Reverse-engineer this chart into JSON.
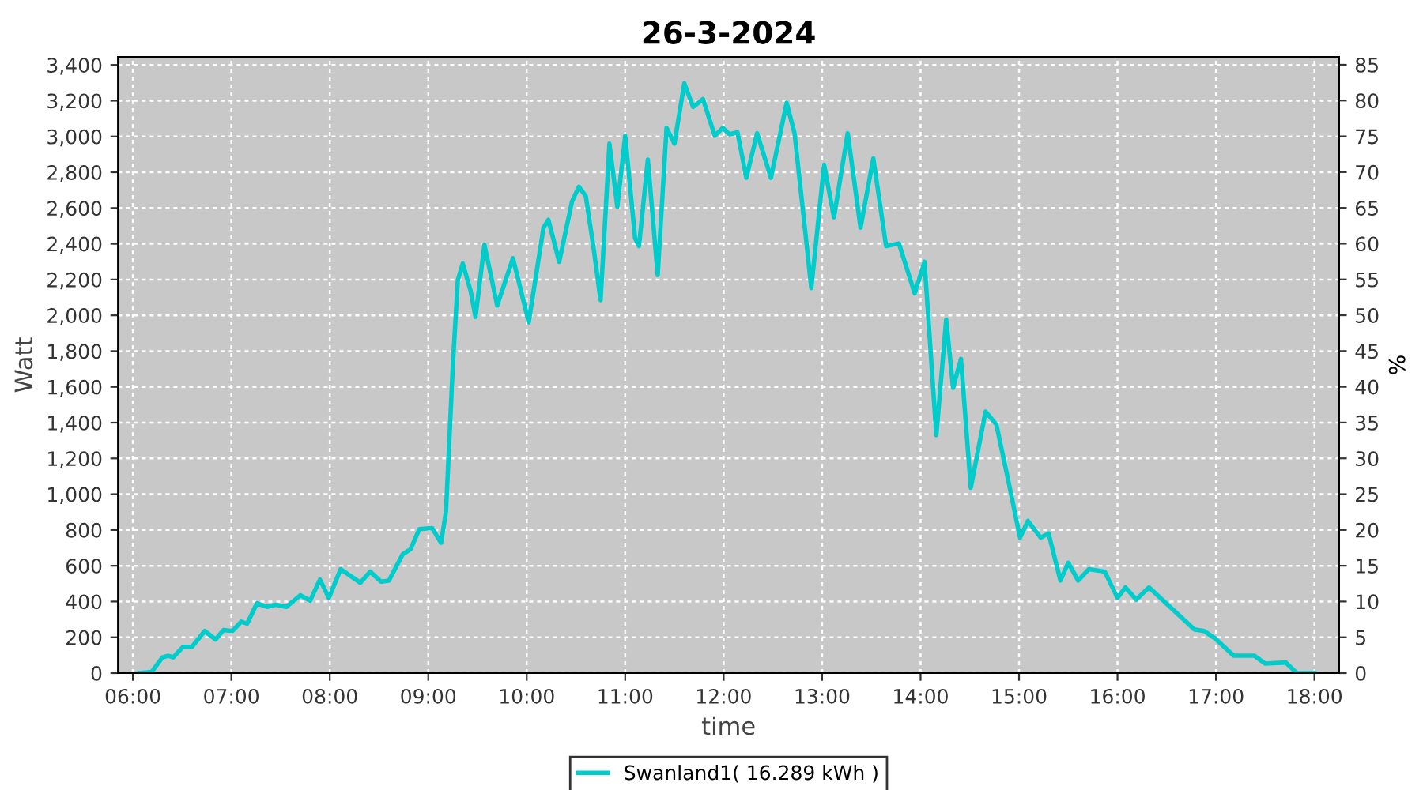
{
  "chart_data": {
    "type": "line",
    "title": "26-3-2024",
    "xlabel": "time",
    "ylabel": "Watt",
    "y2label": "%",
    "xlim": [
      5.85,
      18.25
    ],
    "xticks": [
      {
        "value": 6,
        "label": "06:00"
      },
      {
        "value": 7,
        "label": "07:00"
      },
      {
        "value": 8,
        "label": "08:00"
      },
      {
        "value": 9,
        "label": "09:00"
      },
      {
        "value": 10,
        "label": "10:00"
      },
      {
        "value": 11,
        "label": "11:00"
      },
      {
        "value": 12,
        "label": "12:00"
      },
      {
        "value": 13,
        "label": "13:00"
      },
      {
        "value": 14,
        "label": "14:00"
      },
      {
        "value": 15,
        "label": "15:00"
      },
      {
        "value": 16,
        "label": "16:00"
      },
      {
        "value": 17,
        "label": "17:00"
      },
      {
        "value": 18,
        "label": "18:00"
      }
    ],
    "ylim": [
      0,
      3445
    ],
    "yticks": [
      0,
      200,
      400,
      600,
      800,
      {
        "value": 1000,
        "label": "1,000"
      },
      {
        "value": 1200,
        "label": "1,200"
      },
      {
        "value": 1400,
        "label": "1,400"
      },
      {
        "value": 1600,
        "label": "1,600"
      },
      {
        "value": 1800,
        "label": "1,800"
      },
      {
        "value": 2000,
        "label": "2,000"
      },
      {
        "value": 2200,
        "label": "2,200"
      },
      {
        "value": 2400,
        "label": "2,400"
      },
      {
        "value": 2600,
        "label": "2,600"
      },
      {
        "value": 2800,
        "label": "2,800"
      },
      {
        "value": 3000,
        "label": "3,000"
      },
      {
        "value": 3200,
        "label": "3,200"
      },
      {
        "value": 3400,
        "label": "3,400"
      }
    ],
    "y2lim": [
      0,
      86.1
    ],
    "y2ticks": [
      0,
      5,
      10,
      15,
      20,
      25,
      30,
      35,
      40,
      45,
      50,
      55,
      60,
      65,
      70,
      75,
      80,
      85
    ],
    "grid": true,
    "legend": "bottom",
    "marker": "none",
    "line_style": "solid",
    "series": [
      {
        "name": "Swanland1( 16.289 kWh )",
        "color": "#00cccc",
        "x": [
          6.06,
          6.19,
          6.3,
          6.36,
          6.41,
          6.51,
          6.6,
          6.73,
          6.84,
          6.92,
          7.01,
          7.1,
          7.16,
          7.26,
          7.36,
          7.45,
          7.56,
          7.7,
          7.8,
          7.9,
          7.99,
          8.11,
          8.31,
          8.41,
          8.52,
          8.6,
          8.74,
          8.82,
          8.91,
          9.04,
          9.13,
          9.18,
          9.25,
          9.3,
          9.35,
          9.43,
          9.48,
          9.57,
          9.7,
          9.86,
          10.02,
          10.17,
          10.22,
          10.33,
          10.46,
          10.53,
          10.6,
          10.68,
          10.75,
          10.84,
          10.92,
          11.0,
          11.1,
          11.14,
          11.23,
          11.33,
          11.42,
          11.5,
          11.6,
          11.69,
          11.79,
          11.91,
          11.99,
          12.06,
          12.14,
          12.23,
          12.34,
          12.48,
          12.64,
          12.72,
          12.83,
          12.89,
          13.02,
          13.12,
          13.26,
          13.39,
          13.52,
          13.65,
          13.78,
          13.94,
          14.04,
          14.16,
          14.26,
          14.33,
          14.41,
          14.51,
          14.66,
          14.77,
          14.9,
          15.01,
          15.09,
          15.22,
          15.3,
          15.42,
          15.5,
          15.6,
          15.71,
          15.87,
          16.0,
          16.08,
          16.19,
          16.32,
          16.78,
          16.88,
          16.99,
          17.18,
          17.39,
          17.5,
          17.71,
          17.82,
          18.0
        ],
        "values": [
          0,
          6,
          88,
          97,
          88,
          147,
          147,
          235,
          188,
          241,
          235,
          288,
          276,
          390,
          370,
          382,
          370,
          435,
          405,
          523,
          420,
          581,
          505,
          567,
          511,
          517,
          664,
          693,
          805,
          810,
          728,
          904,
          1726,
          2196,
          2290,
          2137,
          1991,
          2396,
          2055,
          2319,
          1961,
          2490,
          2534,
          2299,
          2637,
          2719,
          2666,
          2372,
          2085,
          2960,
          2607,
          3004,
          2431,
          2387,
          2871,
          2225,
          3048,
          2960,
          3297,
          3165,
          3209,
          3004,
          3048,
          3012,
          3024,
          2769,
          3018,
          2769,
          3188,
          3018,
          2460,
          2152,
          2842,
          2548,
          3018,
          2490,
          2877,
          2387,
          2402,
          2123,
          2299,
          1330,
          1976,
          1594,
          1756,
          1036,
          1462,
          1389,
          1051,
          757,
          851,
          757,
          781,
          517,
          617,
          517,
          581,
          567,
          420,
          479,
          411,
          479,
          244,
          235,
          194,
          97,
          97,
          53,
          59,
          0,
          0
        ]
      }
    ]
  }
}
